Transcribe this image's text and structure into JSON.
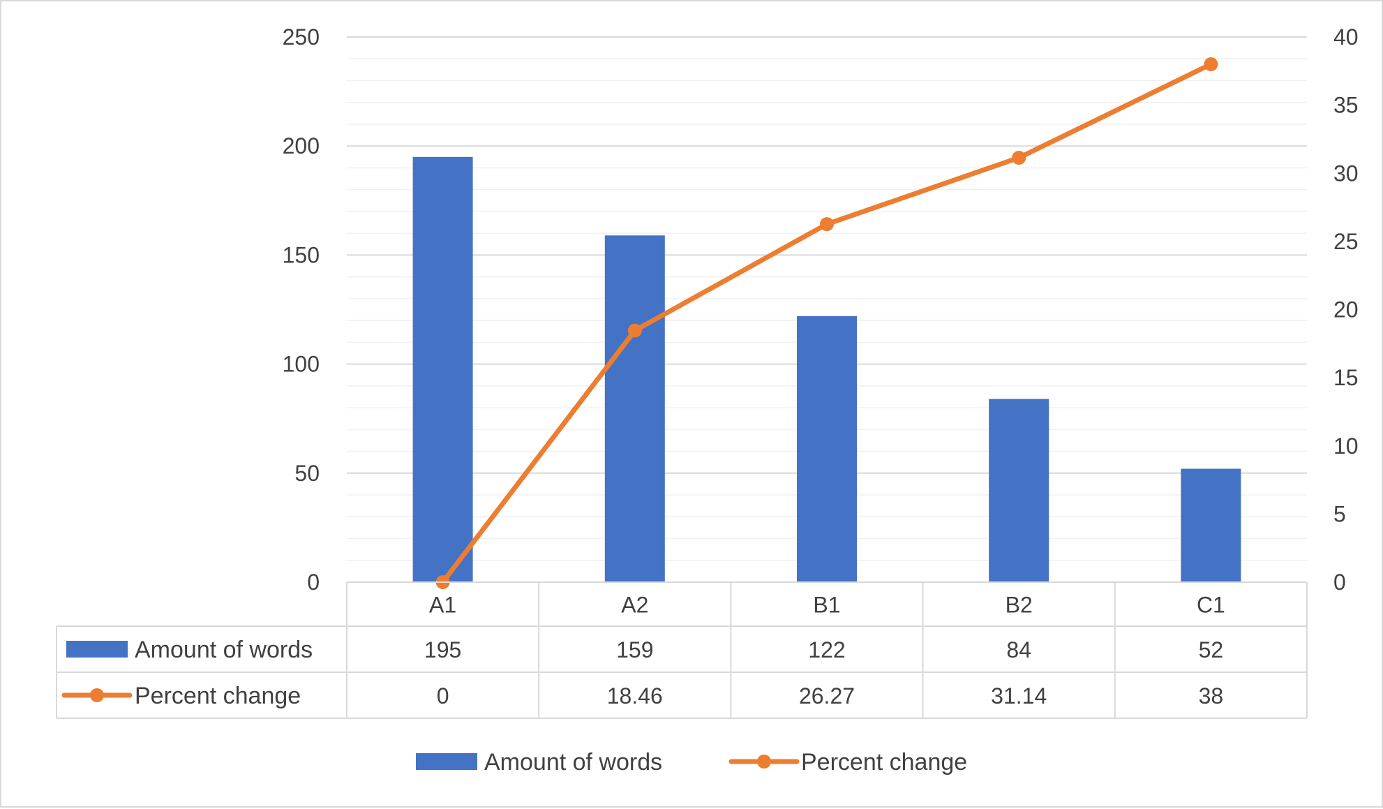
{
  "chart_data": {
    "type": "bar",
    "categories": [
      "A1",
      "A2",
      "B1",
      "B2",
      "C1"
    ],
    "series": [
      {
        "name": "Amount of words",
        "type": "bar",
        "axis": "left",
        "color": "#4472c4",
        "values": [
          195,
          159,
          122,
          84,
          52
        ],
        "labels": [
          "195",
          "159",
          "122",
          "84",
          "52"
        ]
      },
      {
        "name": "Percent change",
        "type": "line",
        "axis": "right",
        "color": "#ed7d31",
        "marker": "circle",
        "values": [
          0,
          18.46,
          26.27,
          31.14,
          38
        ],
        "labels": [
          "0",
          "18.46",
          "26.27",
          "31.14",
          "38"
        ]
      }
    ],
    "y_left": {
      "min": 0,
      "max": 250,
      "major_step": 50,
      "minor_step": 10,
      "ticks": [
        "0",
        "50",
        "100",
        "150",
        "200",
        "250"
      ]
    },
    "y_right": {
      "min": 0,
      "max": 40,
      "major_step": 5,
      "ticks": [
        "0",
        "5",
        "10",
        "15",
        "20",
        "25",
        "30",
        "35",
        "40"
      ]
    },
    "grid": true,
    "data_table": true,
    "legend_position": "bottom",
    "title": "",
    "xlabel": "",
    "ylabel": ""
  }
}
